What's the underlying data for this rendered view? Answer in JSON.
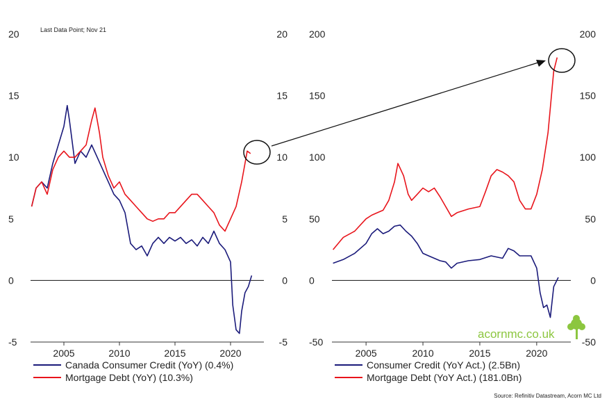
{
  "note": "Last Data Point; Nov 21",
  "source": "Source: Refinitiv Datastream, Acorn MC Ltd",
  "brand": "acornmc.co.uk",
  "colors": {
    "navy": "#1a1a7a",
    "red": "#e8141b",
    "brand_green": "#8cc63f"
  },
  "chart_data": [
    {
      "type": "line",
      "xlim": [
        2002,
        2023
      ],
      "ylim": [
        -5,
        20
      ],
      "x_ticks": [
        "2005",
        "2010",
        "2015",
        "2020"
      ],
      "y_ticks": [
        "20",
        "15",
        "10",
        "5",
        "0",
        "-5"
      ],
      "series": [
        {
          "name": "Canada Consumer Credit (YoY) (0.4%)",
          "color": "#1a1a7a",
          "x": [
            2002.1,
            2002.5,
            2003.0,
            2003.5,
            2004.0,
            2004.5,
            2005.0,
            2005.3,
            2005.5,
            2006.0,
            2006.5,
            2007.0,
            2007.5,
            2008.0,
            2008.5,
            2009.0,
            2009.5,
            2010.0,
            2010.5,
            2011.0,
            2011.5,
            2012.0,
            2012.5,
            2013.0,
            2013.5,
            2014.0,
            2014.5,
            2015.0,
            2015.5,
            2016.0,
            2016.5,
            2017.0,
            2017.5,
            2018.0,
            2018.5,
            2019.0,
            2019.5,
            2020.0,
            2020.2,
            2020.5,
            2020.8,
            2021.0,
            2021.3,
            2021.6,
            2021.9
          ],
          "y": [
            6.0,
            7.5,
            8.0,
            7.5,
            9.5,
            11.0,
            12.5,
            14.2,
            13.0,
            9.5,
            10.5,
            10.0,
            11.0,
            10.0,
            9.0,
            8.0,
            7.0,
            6.5,
            5.5,
            3.0,
            2.5,
            2.8,
            2.0,
            3.0,
            3.5,
            3.0,
            3.5,
            3.2,
            3.5,
            3.0,
            3.3,
            2.8,
            3.5,
            3.0,
            4.0,
            3.0,
            2.5,
            1.5,
            -2.0,
            -4.0,
            -4.3,
            -2.5,
            -1.0,
            -0.5,
            0.4
          ]
        },
        {
          "name": "Mortgage Debt (YoY) (10.3%)",
          "color": "#e8141b",
          "x": [
            2002.1,
            2002.5,
            2003.0,
            2003.5,
            2004.0,
            2004.5,
            2005.0,
            2005.5,
            2006.0,
            2006.5,
            2007.0,
            2007.5,
            2007.8,
            2008.2,
            2008.5,
            2009.0,
            2009.5,
            2010.0,
            2010.5,
            2011.0,
            2011.5,
            2012.0,
            2012.5,
            2013.0,
            2013.5,
            2014.0,
            2014.5,
            2015.0,
            2015.5,
            2016.0,
            2016.5,
            2017.0,
            2017.5,
            2018.0,
            2018.5,
            2019.0,
            2019.5,
            2020.0,
            2020.5,
            2021.0,
            2021.3,
            2021.5,
            2021.8
          ],
          "y": [
            6.0,
            7.5,
            8.0,
            7.0,
            9.0,
            10.0,
            10.5,
            10.0,
            10.0,
            10.5,
            11.0,
            13.0,
            14.0,
            12.0,
            10.0,
            8.5,
            7.5,
            8.0,
            7.0,
            6.5,
            6.0,
            5.5,
            5.0,
            4.8,
            5.0,
            5.0,
            5.5,
            5.5,
            6.0,
            6.5,
            7.0,
            7.0,
            6.5,
            6.0,
            5.5,
            4.5,
            4.0,
            5.0,
            6.0,
            8.0,
            9.5,
            10.5,
            10.3
          ]
        }
      ]
    },
    {
      "type": "line",
      "xlim": [
        2002,
        2023
      ],
      "ylim": [
        -50,
        200
      ],
      "x_ticks": [
        "2005",
        "2010",
        "2015",
        "2020"
      ],
      "y_ticks": [
        "200",
        "150",
        "100",
        "50",
        "0",
        "-50"
      ],
      "series": [
        {
          "name": "Consumer Credit (YoY Act.) (2.5Bn)",
          "color": "#1a1a7a",
          "x": [
            2002.1,
            2003.0,
            2004.0,
            2005.0,
            2005.5,
            2006.0,
            2006.5,
            2007.0,
            2007.5,
            2008.0,
            2008.5,
            2009.0,
            2009.5,
            2010.0,
            2010.5,
            2011.0,
            2011.5,
            2012.0,
            2012.5,
            2013.0,
            2014.0,
            2015.0,
            2016.0,
            2017.0,
            2017.5,
            2018.0,
            2018.5,
            2019.0,
            2019.5,
            2020.0,
            2020.3,
            2020.6,
            2020.9,
            2021.2,
            2021.5,
            2021.9
          ],
          "y": [
            14,
            17,
            22,
            30,
            38,
            42,
            38,
            40,
            44,
            45,
            40,
            36,
            30,
            22,
            20,
            18,
            16,
            15,
            10,
            14,
            16,
            17,
            20,
            18,
            26,
            24,
            20,
            20,
            20,
            10,
            -10,
            -22,
            -20,
            -30,
            -5,
            2.5
          ]
        },
        {
          "name": "Mortgage Debt (YoY Act.) (181.0Bn)",
          "color": "#e8141b",
          "x": [
            2002.1,
            2003.0,
            2004.0,
            2005.0,
            2005.5,
            2006.0,
            2006.5,
            2007.0,
            2007.5,
            2007.8,
            2008.3,
            2008.7,
            2009.0,
            2009.5,
            2010.0,
            2010.5,
            2011.0,
            2011.5,
            2012.0,
            2012.5,
            2013.0,
            2014.0,
            2015.0,
            2015.5,
            2016.0,
            2016.5,
            2017.0,
            2017.5,
            2018.0,
            2018.5,
            2019.0,
            2019.5,
            2020.0,
            2020.5,
            2021.0,
            2021.5,
            2021.8
          ],
          "y": [
            25,
            35,
            40,
            50,
            53,
            55,
            57,
            65,
            80,
            95,
            85,
            70,
            65,
            70,
            75,
            72,
            75,
            68,
            60,
            52,
            55,
            58,
            60,
            72,
            85,
            90,
            88,
            85,
            80,
            65,
            58,
            58,
            70,
            90,
            120,
            170,
            181
          ]
        }
      ]
    }
  ]
}
